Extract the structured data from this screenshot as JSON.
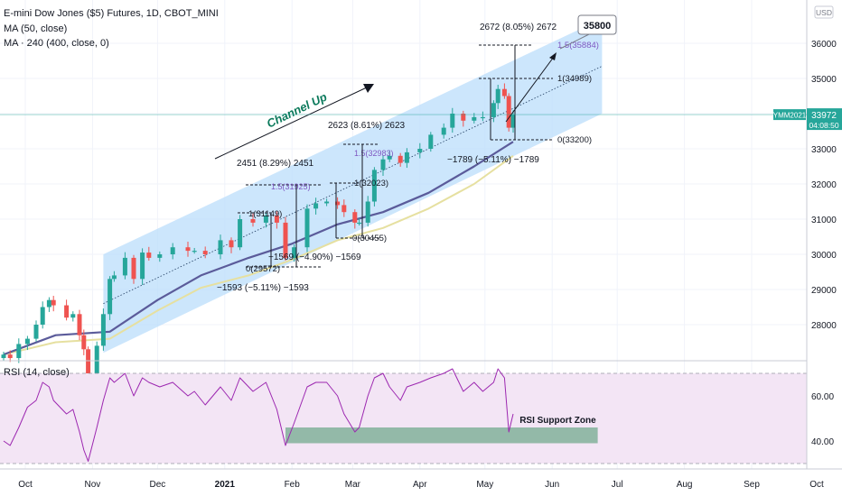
{
  "header": {
    "symbol_line": "E-mini Dow Jones ($5) Futures, 1D, CBOT_MINI",
    "ma1_line": "MA (50, close)",
    "ma2_line": "MA · 240 (400, close, 0)"
  },
  "rsi_panel": {
    "title": "RSI (14, close)",
    "zone_label": "RSI Support Zone"
  },
  "price_scale": {
    "currency": "USD",
    "ticker": "YMM2021",
    "last_price": "33972",
    "countdown": "04:08:50",
    "target_label": "35800"
  },
  "colors": {
    "candle_up": "#26a69a",
    "candle_down": "#ef5350",
    "channel_fill": "#bbdefb",
    "ma50": "#5b5b9a",
    "ma_240": "#e6e0a0",
    "rsi_line": "#9c27b0",
    "rsi_band": "#f3e5f5",
    "rsi_zone": "#81b29a",
    "price_badge": "#26a69a"
  },
  "chart_data": [
    {
      "type": "candlestick",
      "title": "E-mini Dow Jones ($5) Futures, 1D, CBOT_MINI",
      "ylim": [
        27000,
        37000
      ],
      "y_ticks": [
        28000,
        29000,
        30000,
        31000,
        32000,
        33000,
        34000,
        35000,
        36000
      ],
      "x_ticks": [
        "Oct",
        "Nov",
        "Dec",
        "2021",
        "Feb",
        "Mar",
        "Apr",
        "May",
        "Jun",
        "Jul",
        "Aug",
        "Sep",
        "Oct"
      ],
      "series": [
        {
          "name": "Price",
          "points": [
            [
              "2020-09-21",
              27150
            ],
            [
              "2020-09-24",
              27050
            ],
            [
              "2020-09-28",
              27450
            ],
            [
              "2020-10-02",
              27600
            ],
            [
              "2020-10-06",
              28000
            ],
            [
              "2020-10-09",
              28500
            ],
            [
              "2020-10-12",
              28700
            ],
            [
              "2020-10-14",
              28550
            ],
            [
              "2020-10-20",
              28200
            ],
            [
              "2020-10-23",
              28300
            ],
            [
              "2020-10-26",
              27700
            ],
            [
              "2020-10-28",
              27300
            ],
            [
              "2020-10-30",
              26500
            ],
            [
              "2020-11-03",
              27400
            ],
            [
              "2020-11-06",
              28300
            ],
            [
              "2020-11-09",
              29300
            ],
            [
              "2020-11-11",
              29400
            ],
            [
              "2020-11-16",
              29900
            ],
            [
              "2020-11-20",
              29300
            ],
            [
              "2020-11-24",
              30050
            ],
            [
              "2020-11-27",
              29900
            ],
            [
              "2020-12-02",
              30000
            ],
            [
              "2020-12-08",
              30200
            ],
            [
              "2020-12-15",
              30100
            ],
            [
              "2020-12-18",
              30100
            ],
            [
              "2020-12-23",
              30000
            ],
            [
              "2020-12-30",
              30400
            ],
            [
              "2021-01-04",
              30200
            ],
            [
              "2021-01-08",
              31000
            ],
            [
              "2021-01-14",
              30900
            ],
            [
              "2021-01-20",
              31100
            ],
            [
              "2021-01-25",
              30900
            ],
            [
              "2021-01-29",
              29900
            ],
            [
              "2021-02-02",
              30200
            ],
            [
              "2021-02-08",
              31300
            ],
            [
              "2021-02-12",
              31450
            ],
            [
              "2021-02-17",
              31500
            ],
            [
              "2021-02-22",
              31400
            ],
            [
              "2021-02-25",
              31200
            ],
            [
              "2021-03-02",
              30900
            ],
            [
              "2021-03-04",
              30900
            ],
            [
              "2021-03-08",
              31500
            ],
            [
              "2021-03-11",
              32400
            ],
            [
              "2021-03-15",
              32700
            ],
            [
              "2021-03-18",
              32800
            ],
            [
              "2021-03-23",
              32600
            ],
            [
              "2021-03-26",
              32900
            ],
            [
              "2021-04-01",
              33000
            ],
            [
              "2021-04-06",
              33400
            ],
            [
              "2021-04-12",
              33600
            ],
            [
              "2021-04-16",
              34000
            ],
            [
              "2021-04-21",
              33800
            ],
            [
              "2021-04-26",
              33900
            ],
            [
              "2021-04-30",
              33900
            ],
            [
              "2021-05-05",
              34300
            ],
            [
              "2021-05-07",
              34700
            ],
            [
              "2021-05-10",
              34500
            ],
            [
              "2021-05-12",
              33600
            ],
            [
              "2021-05-14",
              33972
            ]
          ]
        },
        {
          "name": "MA (50, close)",
          "points": [
            [
              "2020-09-21",
              27150
            ],
            [
              "2020-10-15",
              27700
            ],
            [
              "2020-11-09",
              27800
            ],
            [
              "2020-12-01",
              28700
            ],
            [
              "2020-12-21",
              29400
            ],
            [
              "2021-01-12",
              29900
            ],
            [
              "2021-02-01",
              30300
            ],
            [
              "2021-02-22",
              30850
            ],
            [
              "2021-03-15",
              31200
            ],
            [
              "2021-04-05",
              31750
            ],
            [
              "2021-04-26",
              32500
            ],
            [
              "2021-05-14",
              33200
            ]
          ]
        },
        {
          "name": "MA · 240 (400, close, 0)",
          "points": [
            [
              "2020-09-21",
              27150
            ],
            [
              "2020-10-15",
              27500
            ],
            [
              "2020-11-09",
              27600
            ],
            [
              "2020-12-01",
              28400
            ],
            [
              "2020-12-21",
              29050
            ],
            [
              "2021-01-12",
              29400
            ],
            [
              "2021-02-01",
              29850
            ],
            [
              "2021-02-22",
              30400
            ],
            [
              "2021-03-15",
              30750
            ],
            [
              "2021-04-05",
              31300
            ],
            [
              "2021-04-26",
              32000
            ],
            [
              "2021-05-14",
              32800
            ]
          ]
        }
      ],
      "channel": {
        "upper": [
          [
            "2020-11-06",
            30000
          ],
          [
            "2021-06-24",
            36700
          ]
        ],
        "lower": [
          [
            "2020-11-06",
            27200
          ],
          [
            "2021-06-24",
            34000
          ]
        ]
      },
      "annotations": [
        {
          "text": "Channel Up"
        },
        {
          "text": "2672 (8.05%) 2672"
        },
        {
          "text": "1.5(35884)"
        },
        {
          "text": "1(34989)"
        },
        {
          "text": "0(33200)"
        },
        {
          "text": "−1789 (−5.11%) −1789"
        },
        {
          "text": "2623 (8.61%) 2623"
        },
        {
          "text": "1.5(32983)"
        },
        {
          "text": "1(32023)"
        },
        {
          "text": "0(30455)"
        },
        {
          "text": "2451 (8.29%) 2451"
        },
        {
          "text": "1.5(31925)"
        },
        {
          "text": "1(31149)"
        },
        {
          "text": "0(29572)"
        },
        {
          "text": "−1569 (−4.90%) −1569"
        },
        {
          "text": "−1593 (−5.11%) −1593"
        }
      ]
    },
    {
      "type": "line",
      "title": "RSI (14, close)",
      "ylim": [
        30,
        75
      ],
      "y_ticks": [
        40,
        60
      ],
      "bands": [
        30,
        70
      ],
      "support_zone": {
        "label": "RSI Support Zone",
        "range": [
          39,
          46
        ],
        "x": [
          "2021-01-29",
          "2021-06-22"
        ]
      },
      "series": [
        {
          "name": "RSI (14, close)",
          "points": [
            [
              "2020-09-21",
              40
            ],
            [
              "2020-09-24",
              38
            ],
            [
              "2020-09-28",
              46
            ],
            [
              "2020-10-02",
              55
            ],
            [
              "2020-10-06",
              58
            ],
            [
              "2020-10-09",
              66
            ],
            [
              "2020-10-12",
              64
            ],
            [
              "2020-10-14",
              58
            ],
            [
              "2020-10-20",
              52
            ],
            [
              "2020-10-23",
              54
            ],
            [
              "2020-10-26",
              44
            ],
            [
              "2020-10-28",
              36
            ],
            [
              "2020-10-30",
              31
            ],
            [
              "2020-11-03",
              46
            ],
            [
              "2020-11-06",
              58
            ],
            [
              "2020-11-09",
              68
            ],
            [
              "2020-11-11",
              66
            ],
            [
              "2020-11-16",
              70
            ],
            [
              "2020-11-20",
              60
            ],
            [
              "2020-11-24",
              68
            ],
            [
              "2020-11-27",
              66
            ],
            [
              "2020-12-02",
              64
            ],
            [
              "2020-12-08",
              66
            ],
            [
              "2020-12-15",
              60
            ],
            [
              "2020-12-18",
              62
            ],
            [
              "2020-12-23",
              56
            ],
            [
              "2020-12-30",
              64
            ],
            [
              "2021-01-04",
              58
            ],
            [
              "2021-01-08",
              68
            ],
            [
              "2021-01-14",
              62
            ],
            [
              "2021-01-20",
              66
            ],
            [
              "2021-01-25",
              54
            ],
            [
              "2021-01-29",
              38
            ],
            [
              "2021-02-02",
              48
            ],
            [
              "2021-02-08",
              64
            ],
            [
              "2021-02-12",
              66
            ],
            [
              "2021-02-17",
              66
            ],
            [
              "2021-02-22",
              60
            ],
            [
              "2021-02-25",
              52
            ],
            [
              "2021-03-02",
              44
            ],
            [
              "2021-03-04",
              46
            ],
            [
              "2021-03-08",
              60
            ],
            [
              "2021-03-11",
              68
            ],
            [
              "2021-03-15",
              70
            ],
            [
              "2021-03-18",
              64
            ],
            [
              "2021-03-23",
              58
            ],
            [
              "2021-03-26",
              64
            ],
            [
              "2021-04-01",
              66
            ],
            [
              "2021-04-06",
              68
            ],
            [
              "2021-04-12",
              70
            ],
            [
              "2021-04-16",
              72
            ],
            [
              "2021-04-21",
              62
            ],
            [
              "2021-04-26",
              66
            ],
            [
              "2021-04-30",
              62
            ],
            [
              "2021-05-05",
              66
            ],
            [
              "2021-05-07",
              72
            ],
            [
              "2021-05-10",
              68
            ],
            [
              "2021-05-12",
              44
            ],
            [
              "2021-05-14",
              52
            ]
          ]
        }
      ]
    }
  ]
}
